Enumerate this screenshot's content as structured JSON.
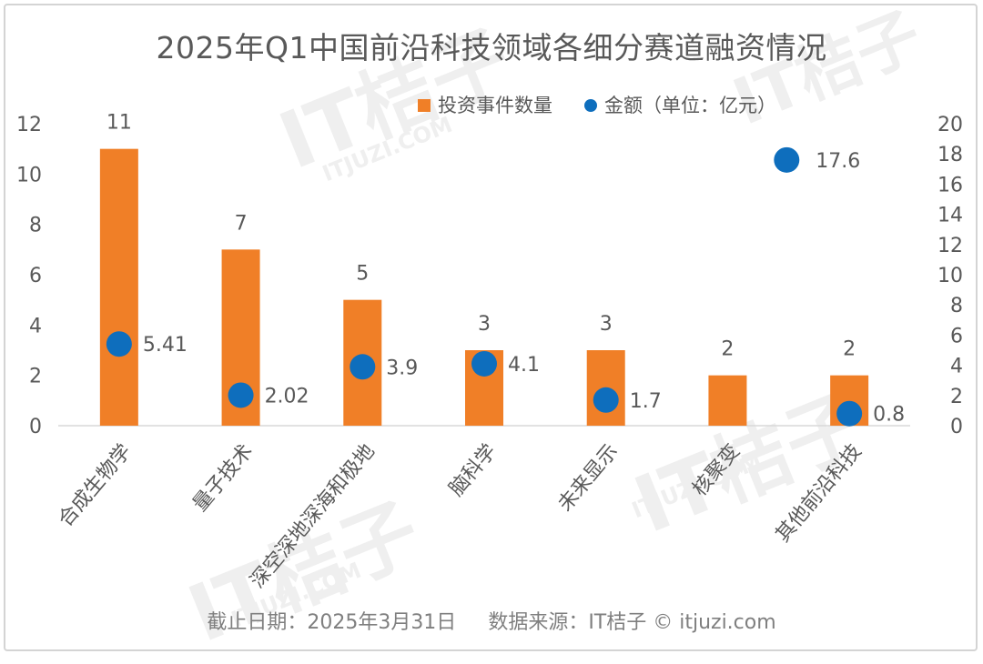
{
  "title": "2025年Q1中国前沿科技领域各细分赛道融资情况",
  "footer": {
    "date": "截止日期：2025年3月31日",
    "source": "数据来源：IT桔子 © itjuzi.com"
  },
  "watermark": {
    "logo_text": "IT桔子",
    "url_text": "ITJUZI.COM"
  },
  "colors": {
    "bar": "#F07F27",
    "marker": "#0E6EBD",
    "axis_text": "#595959",
    "grid": "#d9d9d9"
  },
  "chart_data": {
    "type": "bar",
    "categories": [
      "合成生物学",
      "量子技术",
      "深空深地深海和极地",
      "脑科学",
      "未来显示",
      "核聚变",
      "其他前沿科技"
    ],
    "series": [
      {
        "name": "投资事件数量",
        "type": "bar",
        "axis": "left",
        "values": [
          11,
          7,
          5,
          3,
          3,
          2,
          2
        ],
        "labels": [
          "11",
          "7",
          "5",
          "3",
          "3",
          "2",
          "2"
        ]
      },
      {
        "name": "金额（单位：亿元）",
        "type": "scatter",
        "axis": "right",
        "values": [
          5.41,
          2.02,
          3.9,
          4.1,
          1.7,
          null,
          0.8
        ],
        "labels": [
          "5.41",
          "2.02",
          "3.9",
          "4.1",
          "1.7",
          null,
          "0.8"
        ]
      }
    ],
    "extra_point": {
      "value": 17.6,
      "label": "17.6",
      "axis": "right",
      "position": "between 核聚变 and 其他前沿科技"
    },
    "left_axis": {
      "range": [
        0,
        12
      ],
      "ticks": [
        0,
        2,
        4,
        6,
        8,
        10,
        12
      ]
    },
    "right_axis": {
      "range": [
        0,
        20
      ],
      "ticks": [
        0,
        2,
        4,
        6,
        8,
        10,
        12,
        14,
        16,
        18,
        20
      ]
    },
    "grid": false,
    "legend": "top-right"
  }
}
